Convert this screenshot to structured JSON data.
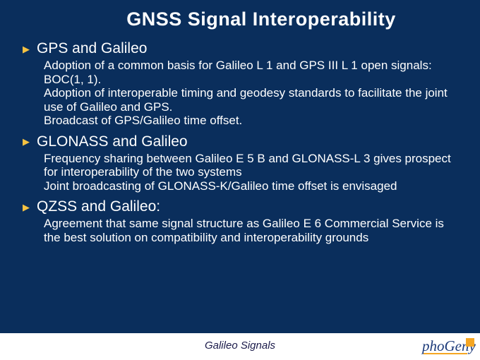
{
  "colors": {
    "background": "#0a2e5c",
    "title_text": "#ffffff",
    "body_text": "#ffffff",
    "bullet": "#f5c242",
    "footer_bg": "#ffffff",
    "footer_text": "#1a1a4a",
    "logo_text": "#1d3b7a",
    "logo_accent": "#f5a623"
  },
  "typography": {
    "title_fontsize": 27,
    "section_title_fontsize": 21,
    "body_fontsize": 17,
    "footer_fontsize": 15,
    "title_family": "Arial",
    "body_family": "Verdana"
  },
  "title": "GNSS Signal Interoperability",
  "sections": [
    {
      "title": "GPS and Galileo",
      "lines": [
        "Adoption of a common basis for Galileo L 1 and GPS III L 1 open signals: BOC(1, 1).",
        "Adoption of interoperable timing and geodesy standards to facilitate the joint use of Galileo and GPS.",
        "Broadcast of GPS/Galileo time offset."
      ]
    },
    {
      "title": "GLONASS and Galileo",
      "lines": [
        "Frequency sharing between Galileo E 5 B and GLONASS-L 3 gives prospect for interoperability of the two systems",
        "Joint broadcasting of GLONASS-K/Galileo time offset is envisaged"
      ]
    },
    {
      "title": "QZSS and Galileo:",
      "lines": [
        "Agreement that same signal structure as Galileo E 6 Commercial Service is the best solution on compatibility and interoperability grounds"
      ]
    }
  ],
  "footer": {
    "text": "Galileo Signals",
    "logo_text": "phoGeny"
  },
  "bullet_glyph": "▶"
}
